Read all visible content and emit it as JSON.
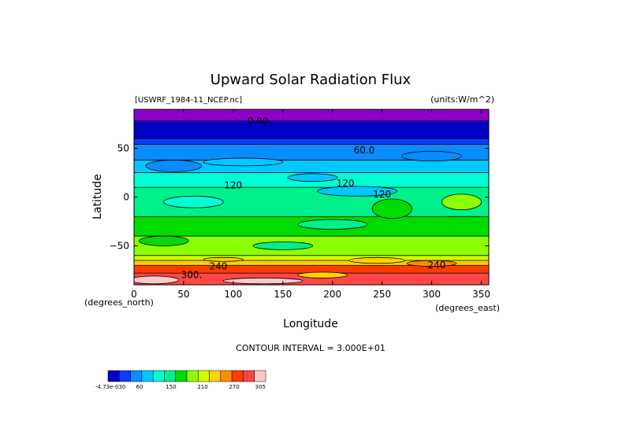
{
  "chart_data": {
    "type": "heatmap",
    "title": "Upward Solar Radiation Flux",
    "subtitle_left": "[USWRF_1984-11_NCEP.nc]",
    "subtitle_right": "(units:W/m^2)",
    "xlabel": "Longitude",
    "ylabel": "Latitude",
    "x_unit_label": "(degrees_east)",
    "y_unit_label": "(degrees_north)",
    "xlim": [
      0,
      357.5
    ],
    "ylim": [
      -90,
      90
    ],
    "x_ticks": [
      0,
      50,
      100,
      150,
      200,
      250,
      300,
      350
    ],
    "y_ticks": [
      -50,
      0,
      50
    ],
    "contour_interval_text": "CONTOUR INTERVAL = 3.000E+01",
    "contour_labels": [
      {
        "text": "0.00",
        "lon": 125,
        "lat": 78
      },
      {
        "text": "60.0",
        "lon": 232,
        "lat": 48
      },
      {
        "text": "120",
        "lon": 100,
        "lat": 12
      },
      {
        "text": "120",
        "lon": 213,
        "lat": 14
      },
      {
        "text": "120",
        "lon": 250,
        "lat": 3
      },
      {
        "text": "240",
        "lon": 85,
        "lat": -71
      },
      {
        "text": "240",
        "lon": 305,
        "lat": -70
      },
      {
        "text": "300.",
        "lon": 58,
        "lat": -80
      }
    ],
    "colorbar": {
      "labels": [
        "-4.73e-030",
        "60",
        "150",
        "210",
        "270",
        "305"
      ],
      "colors": [
        "#0000c8",
        "#0a3cff",
        "#0a8cff",
        "#00c8ff",
        "#00ffd2",
        "#00f08c",
        "#00dc00",
        "#8cff00",
        "#d2ff00",
        "#ffd200",
        "#ff8c00",
        "#ff3c00",
        "#ff4646",
        "#ffc8c8"
      ]
    },
    "bands": [
      {
        "lat_from": 90,
        "lat_to": 78,
        "color": "#8c00c8"
      },
      {
        "lat_from": 78,
        "lat_to": 60,
        "color": "#0000c8"
      },
      {
        "lat_from": 60,
        "lat_to": 54,
        "color": "#0a3cff"
      },
      {
        "lat_from": 54,
        "lat_to": 38,
        "color": "#0a8cff"
      },
      {
        "lat_from": 38,
        "lat_to": 25,
        "color": "#00c8ff"
      },
      {
        "lat_from": 25,
        "lat_to": 10,
        "color": "#00ffd2"
      },
      {
        "lat_from": 10,
        "lat_to": -20,
        "color": "#00f08c"
      },
      {
        "lat_from": -20,
        "lat_to": -40,
        "color": "#00dc00"
      },
      {
        "lat_from": -40,
        "lat_to": -60,
        "color": "#8cff00"
      },
      {
        "lat_from": -60,
        "lat_to": -65,
        "color": "#d2ff00"
      },
      {
        "lat_from": -65,
        "lat_to": -70,
        "color": "#ffd200"
      },
      {
        "lat_from": -70,
        "lat_to": -78,
        "color": "#ff3c00"
      },
      {
        "lat_from": -78,
        "lat_to": -90,
        "color": "#ff4646"
      }
    ],
    "patches": [
      {
        "lon": 40,
        "lat": 32,
        "rlon": 28,
        "rlat": 6,
        "color": "#0a8cff"
      },
      {
        "lon": 110,
        "lat": 36,
        "rlon": 40,
        "rlat": 4,
        "color": "#00c8ff"
      },
      {
        "lon": 300,
        "lat": 42,
        "rlon": 30,
        "rlat": 5,
        "color": "#0a8cff"
      },
      {
        "lon": 225,
        "lat": 6,
        "rlon": 40,
        "rlat": 5,
        "color": "#00c8ff"
      },
      {
        "lon": 180,
        "lat": 20,
        "rlon": 25,
        "rlat": 4,
        "color": "#00c8ff"
      },
      {
        "lon": 60,
        "lat": -5,
        "rlon": 30,
        "rlat": 6,
        "color": "#00ffd2"
      },
      {
        "lon": 260,
        "lat": -12,
        "rlon": 20,
        "rlat": 10,
        "color": "#00dc00"
      },
      {
        "lon": 330,
        "lat": -5,
        "rlon": 20,
        "rlat": 8,
        "color": "#8cff00"
      },
      {
        "lon": 30,
        "lat": -45,
        "rlon": 25,
        "rlat": 5,
        "color": "#00dc00"
      },
      {
        "lon": 150,
        "lat": -50,
        "rlon": 30,
        "rlat": 4,
        "color": "#00f08c"
      },
      {
        "lon": 200,
        "lat": -28,
        "rlon": 35,
        "rlat": 5,
        "color": "#00f08c"
      },
      {
        "lon": 245,
        "lat": -65,
        "rlon": 28,
        "rlat": 3,
        "color": "#ffd200"
      },
      {
        "lon": 90,
        "lat": -64,
        "rlon": 20,
        "rlat": 2,
        "color": "#ffd200"
      },
      {
        "lon": 190,
        "lat": -80,
        "rlon": 25,
        "rlat": 3,
        "color": "#ffd200"
      },
      {
        "lon": 300,
        "lat": -68,
        "rlon": 25,
        "rlat": 3,
        "color": "#ff8c00"
      },
      {
        "lon": 20,
        "lat": -85,
        "rlon": 25,
        "rlat": 4,
        "color": "#ffc8c8"
      },
      {
        "lon": 130,
        "lat": -86,
        "rlon": 40,
        "rlat": 3,
        "color": "#ffc8c8"
      }
    ]
  }
}
